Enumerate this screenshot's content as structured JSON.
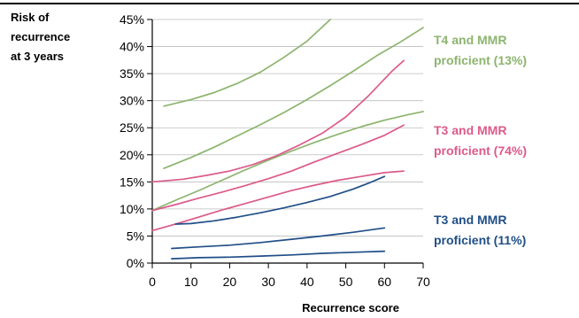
{
  "chart_data": {
    "type": "line",
    "ylabel": [
      "Risk of",
      "recurrence",
      "at 3 years"
    ],
    "xlabel": "Recurrence score",
    "xlim": [
      0,
      70
    ],
    "ylim": [
      0,
      45
    ],
    "x_ticks": [
      "0",
      "10",
      "20",
      "30",
      "40",
      "50",
      "60",
      "70"
    ],
    "y_ticks": [
      "0%",
      "5%",
      "10%",
      "15%",
      "20%",
      "25%",
      "30%",
      "35%",
      "40%",
      "45%"
    ],
    "groups": [
      {
        "label": [
          "T4 and MMR",
          "proficient (13%)"
        ],
        "color": "#8cb46e",
        "series": [
          {
            "x": [
              3,
              10,
              16,
              22,
              28,
              34,
              40,
              46
            ],
            "y": [
              29.0,
              30.2,
              31.5,
              33.2,
              35.3,
              38.0,
              41.0,
              45.0
            ]
          },
          {
            "x": [
              3,
              10,
              16,
              22,
              28,
              34,
              40,
              46,
              52,
              58,
              64,
              70
            ],
            "y": [
              17.5,
              19.5,
              21.4,
              23.5,
              25.6,
              27.8,
              30.2,
              32.8,
              35.5,
              38.3,
              40.8,
              43.5
            ]
          },
          {
            "x": [
              0,
              6,
              12,
              18,
              24,
              30,
              36,
              42,
              48,
              54,
              60,
              66,
              70
            ],
            "y": [
              9.7,
              11.6,
              13.4,
              15.3,
              17.2,
              19.0,
              20.7,
              22.3,
              23.8,
              25.2,
              26.4,
              27.4,
              28.0
            ]
          }
        ]
      },
      {
        "label": [
          "T3 and MMR",
          "proficient (74%)"
        ],
        "color": "#dc5a8a",
        "series": [
          {
            "x": [
              0,
              8,
              14,
              20,
              26,
              32,
              38,
              44,
              50,
              56,
              62,
              65
            ],
            "y": [
              15.0,
              15.5,
              16.2,
              17.0,
              18.2,
              19.8,
              21.8,
              24.0,
              27.0,
              31.0,
              35.5,
              37.4
            ]
          },
          {
            "x": [
              0,
              6,
              12,
              18,
              24,
              30,
              36,
              42,
              48,
              54,
              60,
              65
            ],
            "y": [
              9.7,
              10.8,
              12.0,
              13.1,
              14.3,
              15.6,
              17.0,
              18.7,
              20.3,
              21.9,
              23.6,
              25.5
            ]
          },
          {
            "x": [
              0,
              6,
              12,
              18,
              24,
              30,
              36,
              42,
              48,
              54,
              60,
              65
            ],
            "y": [
              6.0,
              7.2,
              8.5,
              9.8,
              11.0,
              12.2,
              13.4,
              14.4,
              15.3,
              16.0,
              16.7,
              17.0
            ]
          }
        ]
      },
      {
        "label": [
          "T3 and MMR",
          "proficient (11%)"
        ],
        "color": "#1f4e87",
        "series": [
          {
            "x": [
              6,
              10,
              16,
              22,
              28,
              34,
              40,
              46,
              52,
              56,
              60
            ],
            "y": [
              7.2,
              7.3,
              7.8,
              8.5,
              9.3,
              10.2,
              11.2,
              12.3,
              13.7,
              14.8,
              16.0
            ]
          },
          {
            "x": [
              5,
              12,
              20,
              28,
              36,
              44,
              52,
              60
            ],
            "y": [
              2.7,
              3.0,
              3.3,
              3.8,
              4.4,
              5.0,
              5.7,
              6.5
            ]
          },
          {
            "x": [
              5,
              12,
              20,
              28,
              36,
              44,
              52,
              60
            ],
            "y": [
              0.8,
              1.0,
              1.1,
              1.3,
              1.5,
              1.8,
              2.0,
              2.2
            ]
          }
        ]
      }
    ]
  }
}
